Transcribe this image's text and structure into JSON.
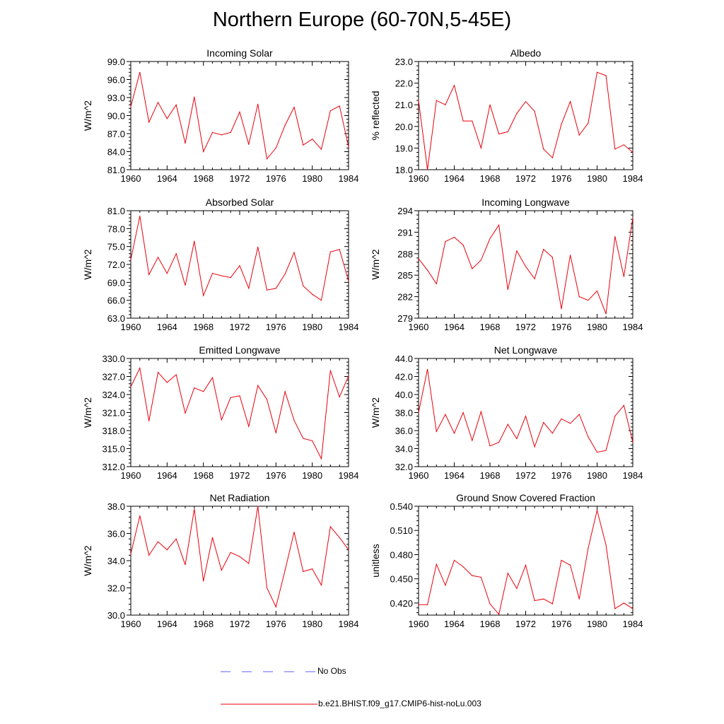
{
  "title": "Northern Europe (60-70N,5-45E)",
  "colors": {
    "model": "#e8000b",
    "obs": "#5d5dff",
    "axis": "#000000"
  },
  "legend": {
    "obs_label": "No Obs",
    "model_label": "b.e21.BHIST.f09_g17.CMIP6-hist-noLu.003"
  },
  "chart_data": [
    {
      "type": "line",
      "title": "Incoming Solar",
      "xlabel": "",
      "ylabel": "W/m^2",
      "xlim": [
        1960,
        1984
      ],
      "ylim": [
        81,
        99
      ],
      "yticks": [
        "81.0",
        "84.0",
        "87.0",
        "90.0",
        "93.0",
        "96.0",
        "99.0"
      ],
      "xticks": [
        "1960",
        "1964",
        "1968",
        "1972",
        "1976",
        "1980",
        "1984"
      ],
      "series": [
        {
          "x": [
            1960,
            1961,
            1962,
            1963,
            1964,
            1965,
            1966,
            1967,
            1968,
            1969,
            1970,
            1971,
            1972,
            1973,
            1974,
            1975,
            1976,
            1977,
            1978,
            1979,
            1980,
            1981,
            1982,
            1983,
            1984
          ],
          "values": [
            91.5,
            97.2,
            88.9,
            92.2,
            89.5,
            91.8,
            85.4,
            93.1,
            84.0,
            87.2,
            86.8,
            87.2,
            90.6,
            85.2,
            91.9,
            82.8,
            84.6,
            88.4,
            91.4,
            85.1,
            86.1,
            84.4,
            90.8,
            91.6,
            84.8
          ]
        }
      ]
    },
    {
      "type": "line",
      "title": "Albedo",
      "xlabel": "",
      "ylabel": "% reflected",
      "xlim": [
        1960,
        1984
      ],
      "ylim": [
        18,
        23
      ],
      "yticks": [
        "18.0",
        "19.0",
        "20.0",
        "21.0",
        "22.0",
        "23.0"
      ],
      "xticks": [
        "1960",
        "1964",
        "1968",
        "1972",
        "1976",
        "1980",
        "1984"
      ],
      "series": [
        {
          "x": [
            1960,
            1961,
            1962,
            1963,
            1964,
            1965,
            1966,
            1967,
            1968,
            1969,
            1970,
            1971,
            1972,
            1973,
            1974,
            1975,
            1976,
            1977,
            1978,
            1979,
            1980,
            1981,
            1982,
            1983,
            1984
          ],
          "values": [
            21.2,
            18.0,
            21.2,
            21.0,
            21.9,
            20.25,
            20.25,
            19.0,
            21.0,
            19.65,
            19.75,
            20.6,
            21.15,
            20.7,
            18.95,
            18.55,
            20.1,
            21.15,
            19.6,
            20.15,
            22.5,
            22.35,
            18.95,
            19.15,
            18.8
          ]
        }
      ]
    },
    {
      "type": "line",
      "title": "Absorbed Solar",
      "xlabel": "",
      "ylabel": "W/m^2",
      "xlim": [
        1960,
        1984
      ],
      "ylim": [
        63,
        81
      ],
      "yticks": [
        "63.0",
        "66.0",
        "69.0",
        "72.0",
        "75.0",
        "78.0",
        "81.0"
      ],
      "xticks": [
        "1960",
        "1964",
        "1968",
        "1972",
        "1976",
        "1980",
        "1984"
      ],
      "series": [
        {
          "x": [
            1960,
            1961,
            1962,
            1963,
            1964,
            1965,
            1966,
            1967,
            1968,
            1969,
            1970,
            1971,
            1972,
            1973,
            1974,
            1975,
            1976,
            1977,
            1978,
            1979,
            1980,
            1981,
            1982,
            1983,
            1984
          ],
          "values": [
            72.8,
            80.1,
            70.3,
            73.2,
            70.5,
            73.8,
            68.5,
            75.9,
            66.8,
            70.5,
            70.1,
            69.8,
            71.8,
            68.0,
            74.9,
            67.7,
            68.0,
            70.4,
            74.0,
            68.4,
            67.0,
            66.0,
            74.1,
            74.5,
            69.2
          ]
        }
      ]
    },
    {
      "type": "line",
      "title": "Incoming Longwave",
      "xlabel": "",
      "ylabel": "W/m^2",
      "xlim": [
        1960,
        1984
      ],
      "ylim": [
        279,
        294
      ],
      "yticks": [
        "279",
        "282",
        "285",
        "288",
        "291",
        "294"
      ],
      "xticks": [
        "1960",
        "1964",
        "1968",
        "1972",
        "1976",
        "1980",
        "1984"
      ],
      "series": [
        {
          "x": [
            1960,
            1961,
            1962,
            1963,
            1964,
            1965,
            1966,
            1967,
            1968,
            1969,
            1970,
            1971,
            1972,
            1973,
            1974,
            1975,
            1976,
            1977,
            1978,
            1979,
            1980,
            1981,
            1982,
            1983,
            1984
          ],
          "values": [
            287.3,
            285.7,
            283.8,
            289.7,
            290.3,
            289.2,
            285.9,
            287.1,
            290.1,
            292.0,
            283.0,
            288.4,
            286.2,
            284.5,
            288.6,
            287.5,
            280.3,
            287.8,
            282.0,
            281.5,
            282.8,
            279.6,
            290.4,
            284.8,
            293.0
          ]
        }
      ]
    },
    {
      "type": "line",
      "title": "Emitted Longwave",
      "xlabel": "",
      "ylabel": "W/m^2",
      "xlim": [
        1960,
        1984
      ],
      "ylim": [
        312,
        330
      ],
      "yticks": [
        "312.0",
        "315.0",
        "318.0",
        "321.0",
        "324.0",
        "327.0",
        "330.0"
      ],
      "xticks": [
        "1960",
        "1964",
        "1968",
        "1972",
        "1976",
        "1980",
        "1984"
      ],
      "series": [
        {
          "x": [
            1960,
            1961,
            1962,
            1963,
            1964,
            1965,
            1966,
            1967,
            1968,
            1969,
            1970,
            1971,
            1972,
            1973,
            1974,
            1975,
            1976,
            1977,
            1978,
            1979,
            1980,
            1981,
            1982,
            1983,
            1984
          ],
          "values": [
            325.3,
            328.4,
            319.6,
            327.7,
            326.0,
            327.3,
            320.9,
            325.1,
            324.5,
            326.8,
            319.8,
            323.5,
            323.8,
            318.7,
            325.5,
            323.2,
            317.6,
            324.5,
            319.7,
            316.7,
            316.3,
            313.3,
            328.0,
            323.6,
            327.1
          ]
        }
      ]
    },
    {
      "type": "line",
      "title": "Net Longwave",
      "xlabel": "",
      "ylabel": "W/m^2",
      "xlim": [
        1960,
        1984
      ],
      "ylim": [
        32,
        44
      ],
      "yticks": [
        "32.0",
        "34.0",
        "36.0",
        "38.0",
        "40.0",
        "42.0",
        "44.0"
      ],
      "xticks": [
        "1960",
        "1964",
        "1968",
        "1972",
        "1976",
        "1980",
        "1984"
      ],
      "series": [
        {
          "x": [
            1960,
            1961,
            1962,
            1963,
            1964,
            1965,
            1966,
            1967,
            1968,
            1969,
            1970,
            1971,
            1972,
            1973,
            1974,
            1975,
            1976,
            1977,
            1978,
            1979,
            1980,
            1981,
            1982,
            1983,
            1984
          ],
          "values": [
            38.0,
            42.8,
            35.9,
            37.8,
            35.7,
            38.0,
            34.9,
            38.1,
            34.3,
            34.7,
            36.7,
            35.1,
            37.6,
            34.2,
            36.9,
            35.7,
            37.3,
            36.8,
            37.8,
            35.3,
            33.6,
            33.8,
            37.6,
            38.8,
            34.7
          ]
        }
      ]
    },
    {
      "type": "line",
      "title": "Net Radiation",
      "xlabel": "",
      "ylabel": "W/m^2",
      "xlim": [
        1960,
        1984
      ],
      "ylim": [
        30,
        38
      ],
      "yticks": [
        "30.0",
        "32.0",
        "34.0",
        "36.0",
        "38.0"
      ],
      "xticks": [
        "1960",
        "1964",
        "1968",
        "1972",
        "1976",
        "1980",
        "1984"
      ],
      "series": [
        {
          "x": [
            1960,
            1961,
            1962,
            1963,
            1964,
            1965,
            1966,
            1967,
            1968,
            1969,
            1970,
            1971,
            1972,
            1973,
            1974,
            1975,
            1976,
            1977,
            1978,
            1979,
            1980,
            1981,
            1982,
            1983,
            1984
          ],
          "values": [
            34.5,
            37.3,
            34.4,
            35.4,
            34.8,
            35.6,
            33.7,
            37.8,
            32.5,
            35.7,
            33.3,
            34.6,
            34.3,
            33.8,
            38.0,
            32.0,
            30.6,
            33.3,
            36.1,
            33.2,
            33.4,
            32.2,
            36.5,
            35.7,
            34.8
          ]
        }
      ]
    },
    {
      "type": "line",
      "title": "Ground Snow Covered Fraction",
      "xlabel": "",
      "ylabel": "unitless",
      "xlim": [
        1960,
        1984
      ],
      "ylim": [
        0.405,
        0.54
      ],
      "yticks": [
        "0.420",
        "0.450",
        "0.480",
        "0.510",
        "0.540"
      ],
      "xticks": [
        "1960",
        "1964",
        "1968",
        "1972",
        "1976",
        "1980",
        "1984"
      ],
      "series": [
        {
          "x": [
            1960,
            1961,
            1962,
            1963,
            1964,
            1965,
            1966,
            1967,
            1968,
            1969,
            1970,
            1971,
            1972,
            1973,
            1974,
            1975,
            1976,
            1977,
            1978,
            1979,
            1980,
            1981,
            1982,
            1983,
            1984
          ],
          "values": [
            0.418,
            0.418,
            0.468,
            0.442,
            0.473,
            0.465,
            0.454,
            0.452,
            0.419,
            0.406,
            0.457,
            0.438,
            0.467,
            0.423,
            0.425,
            0.419,
            0.473,
            0.467,
            0.425,
            0.488,
            0.535,
            0.492,
            0.413,
            0.42,
            0.413
          ]
        }
      ]
    }
  ]
}
